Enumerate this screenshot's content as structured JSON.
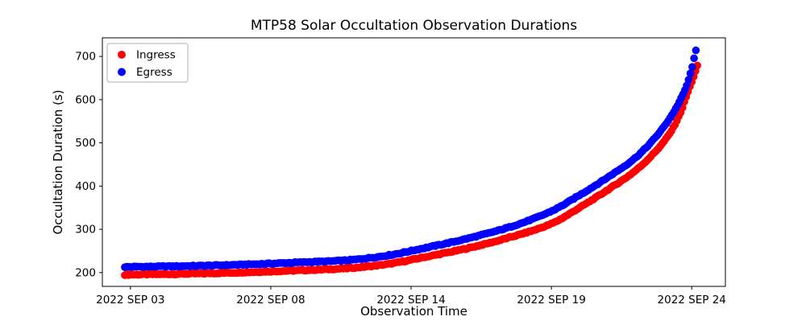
{
  "figure": {
    "background": "#ffffff",
    "title": "MTP58 Solar Occultation Observation Durations"
  },
  "chart_data": {
    "type": "scatter",
    "title": "MTP58 Solar Occultation Observation Durations",
    "xlabel": "Observation Time",
    "ylabel": "Occultation Duration (s)",
    "x_tick_labels": [
      "2022 SEP 03",
      "2022 SEP 08",
      "2022 SEP 14",
      "2022 SEP 19",
      "2022 SEP 24"
    ],
    "x_tick_positions": [
      0,
      1,
      2,
      3,
      4
    ],
    "x_unit_note": "x measured in tick-interval units along the time axis; 0 = 2022 SEP 03 tick, 4 = 2022 SEP 24 tick",
    "xlim": [
      -0.2,
      4.24
    ],
    "y_ticks": [
      200,
      300,
      400,
      500,
      600,
      700
    ],
    "ylim": [
      168,
      743
    ],
    "grid": false,
    "marker": "circle",
    "marker_diameter_px": 9.6,
    "points_per_band": 310,
    "legend": {
      "position": "upper left",
      "entries": [
        {
          "label": "Ingress",
          "color": "#ff0000"
        },
        {
          "label": "Egress",
          "color": "#0000ff"
        }
      ]
    },
    "series": [
      {
        "name": "Ingress",
        "color": "#ff0000",
        "u_start": -0.04,
        "u_end": 4.04,
        "anchors": [
          [
            -0.04,
            195
          ],
          [
            0.3,
            196.5
          ],
          [
            0.6,
            198.5
          ],
          [
            0.9,
            201.5
          ],
          [
            1.2,
            205
          ],
          [
            1.5,
            209
          ],
          [
            1.8,
            218
          ],
          [
            2.1,
            236
          ],
          [
            2.4,
            256
          ],
          [
            2.7,
            281
          ],
          [
            3.0,
            313
          ],
          [
            3.2,
            350
          ],
          [
            3.4,
            391
          ],
          [
            3.6,
            436
          ],
          [
            3.75,
            483
          ],
          [
            3.85,
            525
          ],
          [
            3.92,
            570
          ],
          [
            3.97,
            615
          ],
          [
            4.01,
            650
          ],
          [
            4.04,
            678
          ]
        ]
      },
      {
        "name": "Egress",
        "color": "#0000ff",
        "u_start": -0.04,
        "u_end": 4.03,
        "anchors": [
          [
            -0.04,
            213
          ],
          [
            0.3,
            214.5
          ],
          [
            0.6,
            216.5
          ],
          [
            0.9,
            219.5
          ],
          [
            1.2,
            223.5
          ],
          [
            1.5,
            227.5
          ],
          [
            1.8,
            238
          ],
          [
            2.1,
            257
          ],
          [
            2.4,
            278.5
          ],
          [
            2.7,
            305
          ],
          [
            3.0,
            342
          ],
          [
            3.2,
            379
          ],
          [
            3.4,
            420
          ],
          [
            3.6,
            466
          ],
          [
            3.75,
            516
          ],
          [
            3.85,
            560
          ],
          [
            3.92,
            600
          ],
          [
            3.97,
            638
          ],
          [
            4.0,
            672
          ],
          [
            4.03,
            713
          ]
        ]
      }
    ]
  }
}
